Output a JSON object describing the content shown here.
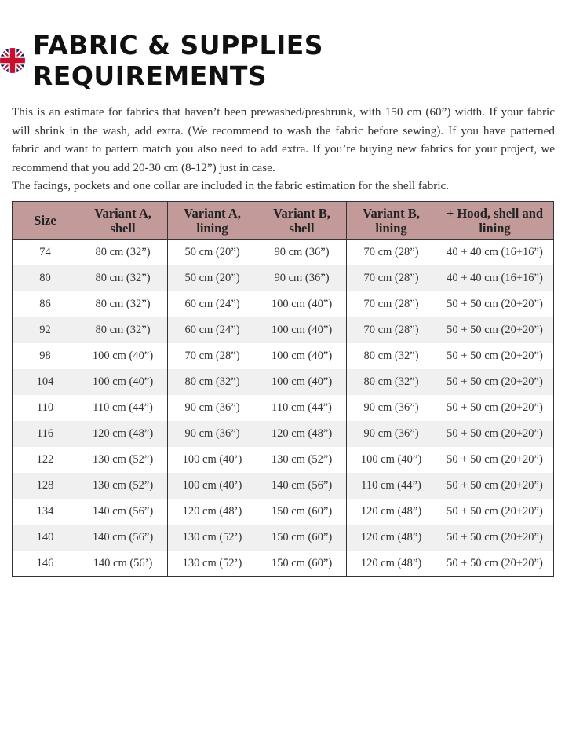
{
  "header": {
    "title": "FABRIC & SUPPLIES REQUIREMENTS",
    "flag_icon": "uk-flag-icon"
  },
  "intro": {
    "paragraph1": "This is an estimate for fabrics that haven’t been prewashed/preshrunk, with 150 cm (60”) width. If your fabric will shrink in the wash, add extra. (We recommend to wash the fabric before sewing). If you have patterned fabric and want to pattern match you also need to add extra. If you’re buying new fabrics for your project, we recommend that you add 20-30 cm (8-12”) just in case.",
    "paragraph2": "The facings, pockets and one collar are included in the fabric estimation for the shell fabric."
  },
  "table": {
    "header_color": "#c39a9a",
    "columns": [
      "Size",
      "Variant A, shell",
      "Variant A, lining",
      "Variant B, shell",
      "Variant B, lining",
      "+ Hood, shell and lining"
    ],
    "rows": [
      [
        "74",
        "80 cm (32”)",
        "50 cm (20”)",
        "90 cm (36”)",
        "70 cm (28”)",
        "40 + 40 cm (16+16”)"
      ],
      [
        "80",
        "80 cm (32”)",
        "50 cm (20”)",
        "90 cm (36”)",
        "70 cm (28”)",
        "40 + 40 cm (16+16”)"
      ],
      [
        "86",
        "80 cm (32”)",
        "60 cm (24”)",
        "100 cm (40”)",
        "70 cm (28”)",
        "50 + 50 cm (20+20”)"
      ],
      [
        "92",
        "80 cm (32”)",
        "60 cm (24”)",
        "100 cm (40”)",
        "70 cm (28”)",
        "50 + 50 cm (20+20”)"
      ],
      [
        "98",
        "100 cm (40”)",
        "70 cm (28”)",
        "100 cm (40”)",
        "80 cm (32”)",
        "50 + 50 cm (20+20”)"
      ],
      [
        "104",
        "100 cm (40”)",
        "80 cm (32”)",
        "100 cm (40”)",
        "80 cm (32”)",
        "50 + 50 cm (20+20”)"
      ],
      [
        "110",
        "110 cm (44”)",
        "90 cm (36”)",
        "110 cm (44”)",
        "90 cm (36”)",
        "50 + 50 cm (20+20”)"
      ],
      [
        "116",
        "120 cm (48”)",
        "90 cm (36”)",
        "120 cm (48”)",
        "90 cm (36”)",
        "50 + 50 cm (20+20”)"
      ],
      [
        "122",
        "130 cm (52”)",
        "100 cm (40’)",
        "130 cm (52”)",
        "100 cm (40”)",
        "50 + 50 cm (20+20”)"
      ],
      [
        "128",
        "130 cm (52”)",
        "100 cm (40’)",
        "140 cm (56”)",
        "110 cm (44”)",
        "50 + 50 cm (20+20”)"
      ],
      [
        "134",
        "140 cm (56”)",
        "120 cm (48’)",
        "150 cm (60”)",
        "120 cm (48”)",
        "50 + 50 cm (20+20”)"
      ],
      [
        "140",
        "140 cm (56”)",
        "130 cm (52’)",
        "150 cm (60”)",
        "120 cm (48”)",
        "50 + 50 cm (20+20”)"
      ],
      [
        "146",
        "140 cm (56’)",
        "130 cm (52’)",
        "150 cm (60”)",
        "120 cm (48”)",
        "50 + 50 cm (20+20”)"
      ]
    ]
  }
}
